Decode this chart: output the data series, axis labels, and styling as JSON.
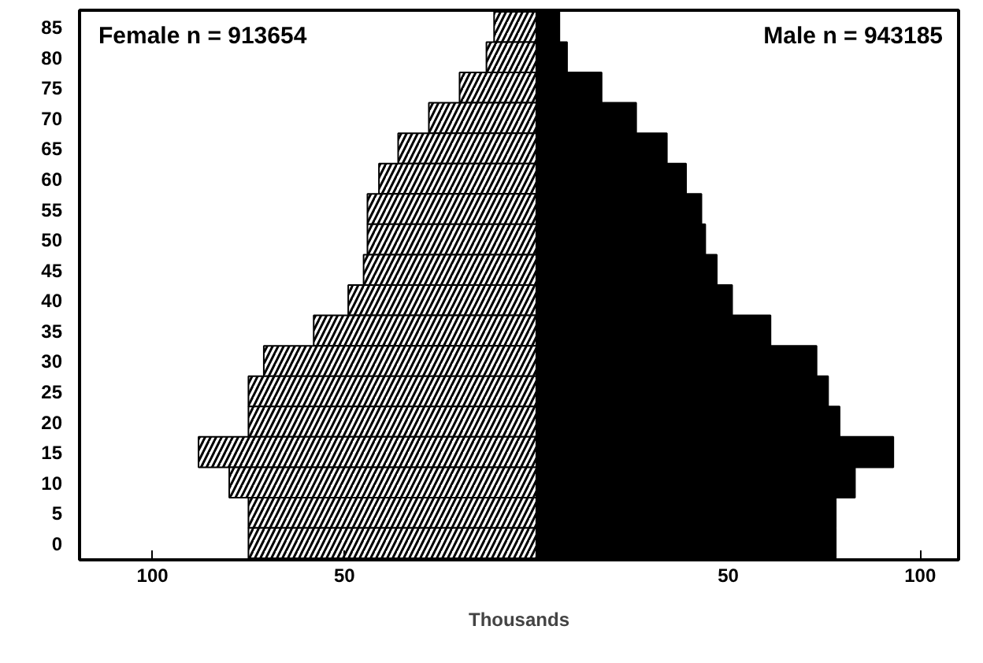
{
  "chart_data": {
    "type": "bar",
    "orientation": "horizontal",
    "stacked": true,
    "xlabel": "Thousands",
    "categories": [
      "85",
      "80",
      "75",
      "70",
      "65",
      "60",
      "55",
      "50",
      "45",
      "40",
      "35",
      "30",
      "25",
      "20",
      "15",
      "10",
      "5",
      "0"
    ],
    "series": [
      {
        "color": "#ffffff",
        "values": [
          -11,
          -13,
          -20,
          -28,
          -36,
          -41,
          -44,
          -44,
          -45,
          -49,
          -58,
          -71,
          -75,
          -75,
          -88,
          -80,
          -75,
          -75
        ]
      },
      {
        "color": "#000000",
        "values": [
          6,
          8,
          17,
          26,
          34,
          39,
          43,
          44,
          47,
          51,
          61,
          73,
          76,
          79,
          93,
          83,
          78,
          78
        ]
      }
    ],
    "xlim": [
      -119,
      110
    ],
    "xticks": [
      {
        "value": -100,
        "label": "100"
      },
      {
        "value": -50,
        "label": "50"
      },
      50,
      100
    ],
    "annotations": [
      "Female n = 913654",
      "Male n = 943185"
    ],
    "grid": false
  }
}
